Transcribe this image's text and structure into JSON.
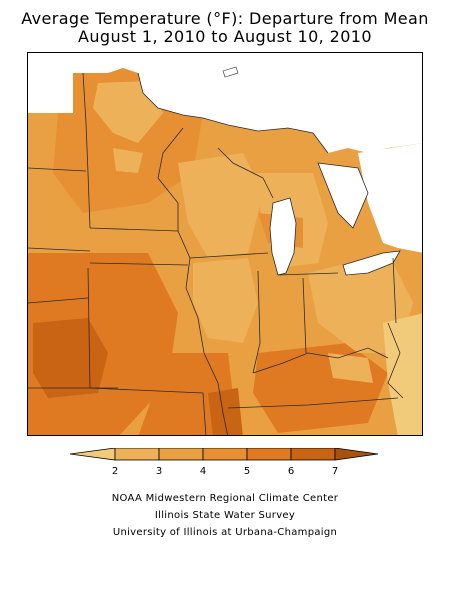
{
  "title": {
    "line1": "Average Temperature (°F): Departure from Mean",
    "line2": "August 1, 2010 to August 10, 2010"
  },
  "legend": {
    "labels": [
      "2",
      "3",
      "4",
      "5",
      "6",
      "7"
    ],
    "colors": [
      "#F2CB7A",
      "#EDB259",
      "#E9A043",
      "#E68F33",
      "#E07A22",
      "#C86414",
      "#A9520F"
    ]
  },
  "colors": {
    "water": "#ffffff",
    "boundary": "#2b2b2b"
  },
  "credits": [
    "NOAA Midwestern Regional Climate Center",
    "Illinois State Water Survey",
    "University of Illinois at Urbana-Champaign"
  ]
}
